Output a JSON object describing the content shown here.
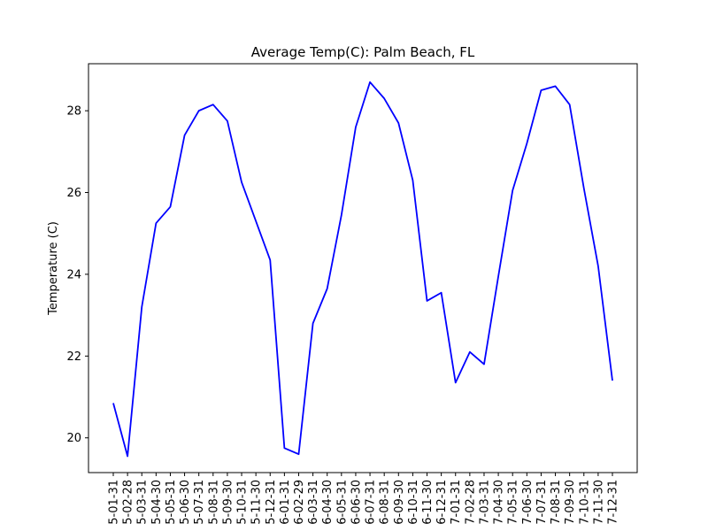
{
  "chart_data": {
    "type": "line",
    "title": "Average Temp(C): Palm Beach, FL",
    "xlabel": "",
    "ylabel": "Temperature (C)",
    "ylim": [
      19.15,
      29.15
    ],
    "yticks": [
      20,
      22,
      24,
      26,
      28
    ],
    "grid": false,
    "legend": "none",
    "categories": [
      "5-01-31",
      "5-02-28",
      "5-03-31",
      "5-04-30",
      "5-05-31",
      "5-06-30",
      "5-07-31",
      "5-08-31",
      "5-09-30",
      "5-10-31",
      "5-11-30",
      "5-12-31",
      "6-01-31",
      "6-02-29",
      "6-03-31",
      "6-04-30",
      "6-05-31",
      "6-06-30",
      "6-07-31",
      "6-08-31",
      "6-09-30",
      "6-10-31",
      "6-11-30",
      "6-12-31",
      "7-01-31",
      "7-02-28",
      "7-03-31",
      "7-04-30",
      "7-05-31",
      "7-06-30",
      "7-07-31",
      "7-08-31",
      "7-09-30",
      "7-10-31",
      "7-11-30",
      "7-12-31"
    ],
    "series": [
      {
        "color": "#0000ff",
        "values": [
          20.85,
          19.55,
          23.2,
          25.25,
          25.65,
          27.4,
          28.0,
          28.15,
          27.75,
          26.25,
          25.3,
          24.35,
          19.75,
          19.6,
          22.8,
          23.65,
          25.45,
          27.6,
          28.7,
          28.3,
          27.7,
          26.3,
          23.35,
          23.55,
          21.35,
          22.1,
          21.8,
          23.95,
          26.05,
          27.2,
          28.5,
          28.6,
          28.15,
          26.1,
          24.2,
          21.4
        ]
      }
    ]
  }
}
